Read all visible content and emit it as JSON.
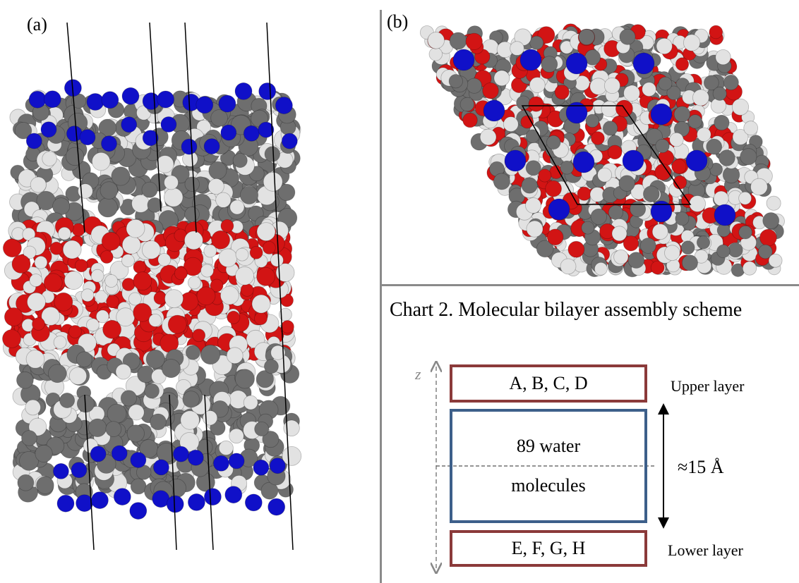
{
  "panels": {
    "a_label": "(a)",
    "b_label": "(b)"
  },
  "chart2": {
    "title": "Chart 2. Molecular bilayer assembly scheme",
    "upper_box": "A, B, C, D",
    "upper_label": "Upper layer",
    "water_line1": "89 water",
    "water_line2": "molecules",
    "thickness": "≈15 Å",
    "lower_box": "E, F, G, H",
    "lower_label": "Lower layer",
    "axis_label": "z"
  },
  "colors": {
    "nitrogen": "#1010c8",
    "carbon": "#6e6e6e",
    "oxygen": "#d21414",
    "hydrogen": "#e2e2e2",
    "layer_box": "#8b3a3a",
    "water_box": "#3d5f8a"
  }
}
